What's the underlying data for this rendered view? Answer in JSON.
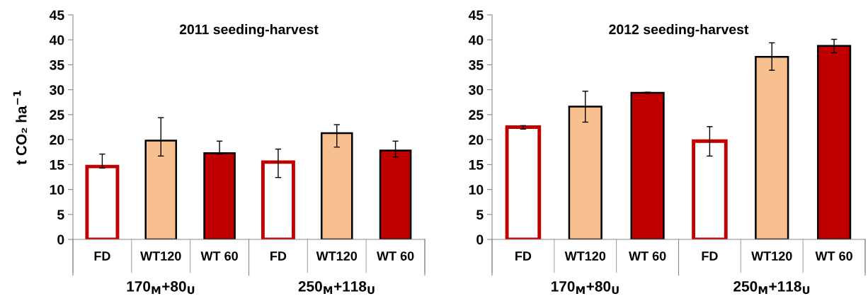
{
  "chart_data": [
    {
      "type": "bar",
      "title": "2011 seeding-harvest",
      "ylabel": "t CO₂ ha$^{−1}$",
      "categories": [
        "FD",
        "WT120",
        "WT 60",
        "FD",
        "WT120",
        "WT 60"
      ],
      "values": [
        14.6,
        19.8,
        17.3,
        15.5,
        21.3,
        17.8
      ],
      "errors": [
        [
          14.3,
          17.1
        ],
        [
          16.7,
          24.4
        ],
        [
          17.1,
          19.7
        ],
        [
          12.4,
          18.1
        ],
        [
          18.5,
          23.0
        ],
        [
          16.5,
          19.7
        ]
      ],
      "colors": [
        "#ffffff",
        "#f9c08f",
        "#c00000",
        "#ffffff",
        "#f9c08f",
        "#c00000"
      ],
      "annotations": [
        "170$_{M}$+80$_{U}$",
        "250$_{M}$+118$_{U}$"
      ],
      "ylim": [
        0,
        45
      ],
      "yticks": [
        0,
        5,
        10,
        15,
        20,
        25,
        30,
        35,
        40,
        45
      ],
      "grid": false,
      "legend": false
    },
    {
      "type": "bar",
      "title": "2012 seeding-harvest",
      "categories": [
        "FD",
        "WT120",
        "WT 60",
        "FD",
        "WT120",
        "WT 60"
      ],
      "values": [
        22.5,
        26.6,
        29.4,
        19.7,
        36.6,
        38.8
      ],
      "errors": [
        [
          22.1,
          22.8
        ],
        [
          23.5,
          29.7
        ],
        [
          29.3,
          29.5
        ],
        [
          16.7,
          22.6
        ],
        [
          33.9,
          39.4
        ],
        [
          37.4,
          40.1
        ]
      ],
      "colors": [
        "#ffffff",
        "#f9c08f",
        "#c00000",
        "#ffffff",
        "#f9c08f",
        "#c00000"
      ],
      "annotations": [
        "170$_{M}$+80$_{U}$",
        "250$_{M}$+118$_{U}$"
      ],
      "ylim": [
        0,
        45
      ],
      "yticks": [
        0,
        5,
        10,
        15,
        20,
        25,
        30,
        35,
        40,
        45
      ],
      "grid": false,
      "legend": false
    }
  ]
}
